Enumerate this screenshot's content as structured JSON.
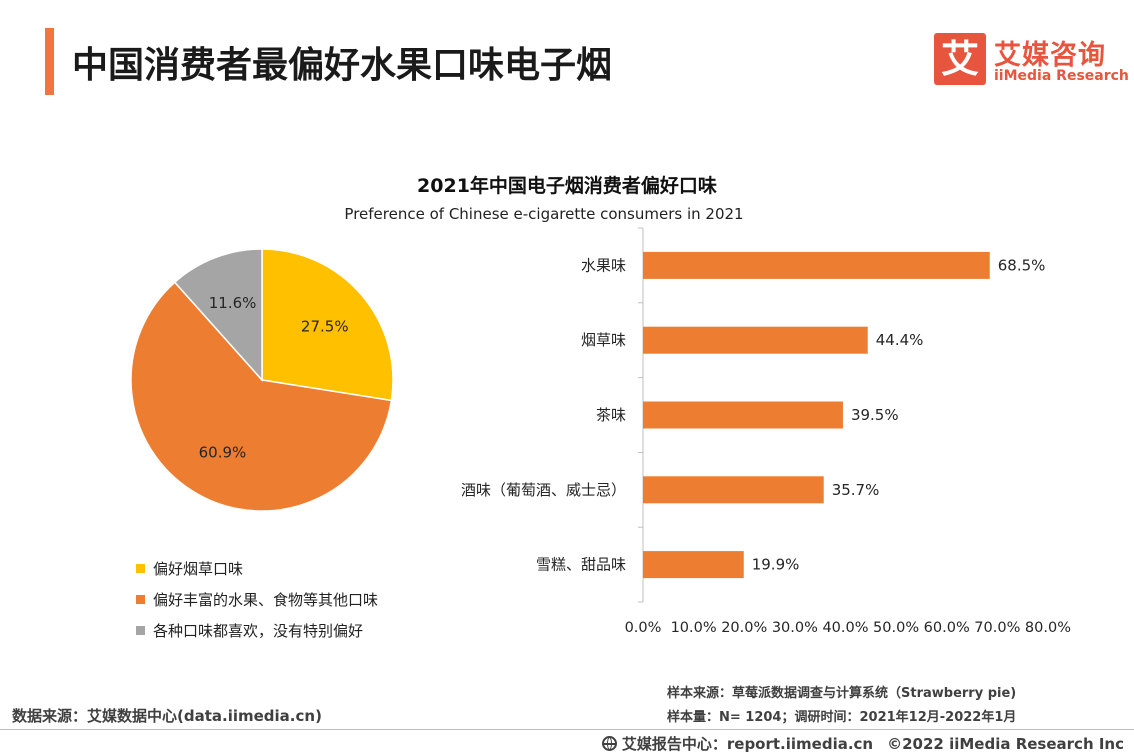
{
  "header": {
    "title": "中国消费者最偏好水果口味电子烟",
    "accent_color": "#f0753f"
  },
  "logo": {
    "icon_char": "艾",
    "name_cn": "艾媒咨询",
    "name_en": "iiMedia Research",
    "color": "#e8553e"
  },
  "chart_data": [
    {
      "type": "pie",
      "title": "2021年中国电子烟消费者偏好口味",
      "subtitle": "Preference of Chinese e-cigarette consumers in 2021",
      "unit": "%",
      "slices": [
        {
          "label": "偏好烟草口味",
          "value": 27.5,
          "display": "27.5%",
          "color": "#ffc000"
        },
        {
          "label": "偏好丰富的水果、食物等其他口味",
          "value": 60.9,
          "display": "60.9%",
          "color": "#ed7d31"
        },
        {
          "label": "各种口味都喜欢，没有特别偏好",
          "value": 11.6,
          "display": "11.6%",
          "color": "#a5a5a5"
        }
      ],
      "legend_position": "bottom-left"
    },
    {
      "type": "bar",
      "orientation": "horizontal",
      "categories": [
        "水果味",
        "烟草味",
        "茶味",
        "酒味（葡萄酒、威士忌）",
        "雪糕、甜品味"
      ],
      "values": [
        68.5,
        44.4,
        39.5,
        35.7,
        19.9
      ],
      "value_labels": [
        "68.5%",
        "44.4%",
        "39.5%",
        "35.7%",
        "19.9%"
      ],
      "xlim": [
        0,
        80
      ],
      "x_ticks": [
        "0.0%",
        "10.0%",
        "20.0%",
        "30.0%",
        "40.0%",
        "50.0%",
        "60.0%",
        "70.0%",
        "80.0%"
      ],
      "bar_color": "#ed7d31",
      "grid": false
    }
  ],
  "footer": {
    "data_source": "数据来源：艾媒数据中心(data.iimedia.cn)",
    "sample_source": "样本来源：草莓派数据调查与计算系统（Strawberry pie)",
    "sample_size": "样本量：N= 1204；调研时间：2021年12月-2022年1月",
    "report_center": "艾媒报告中心：report.iimedia.cn",
    "copyright": "©2022  iiMedia Research  Inc"
  }
}
